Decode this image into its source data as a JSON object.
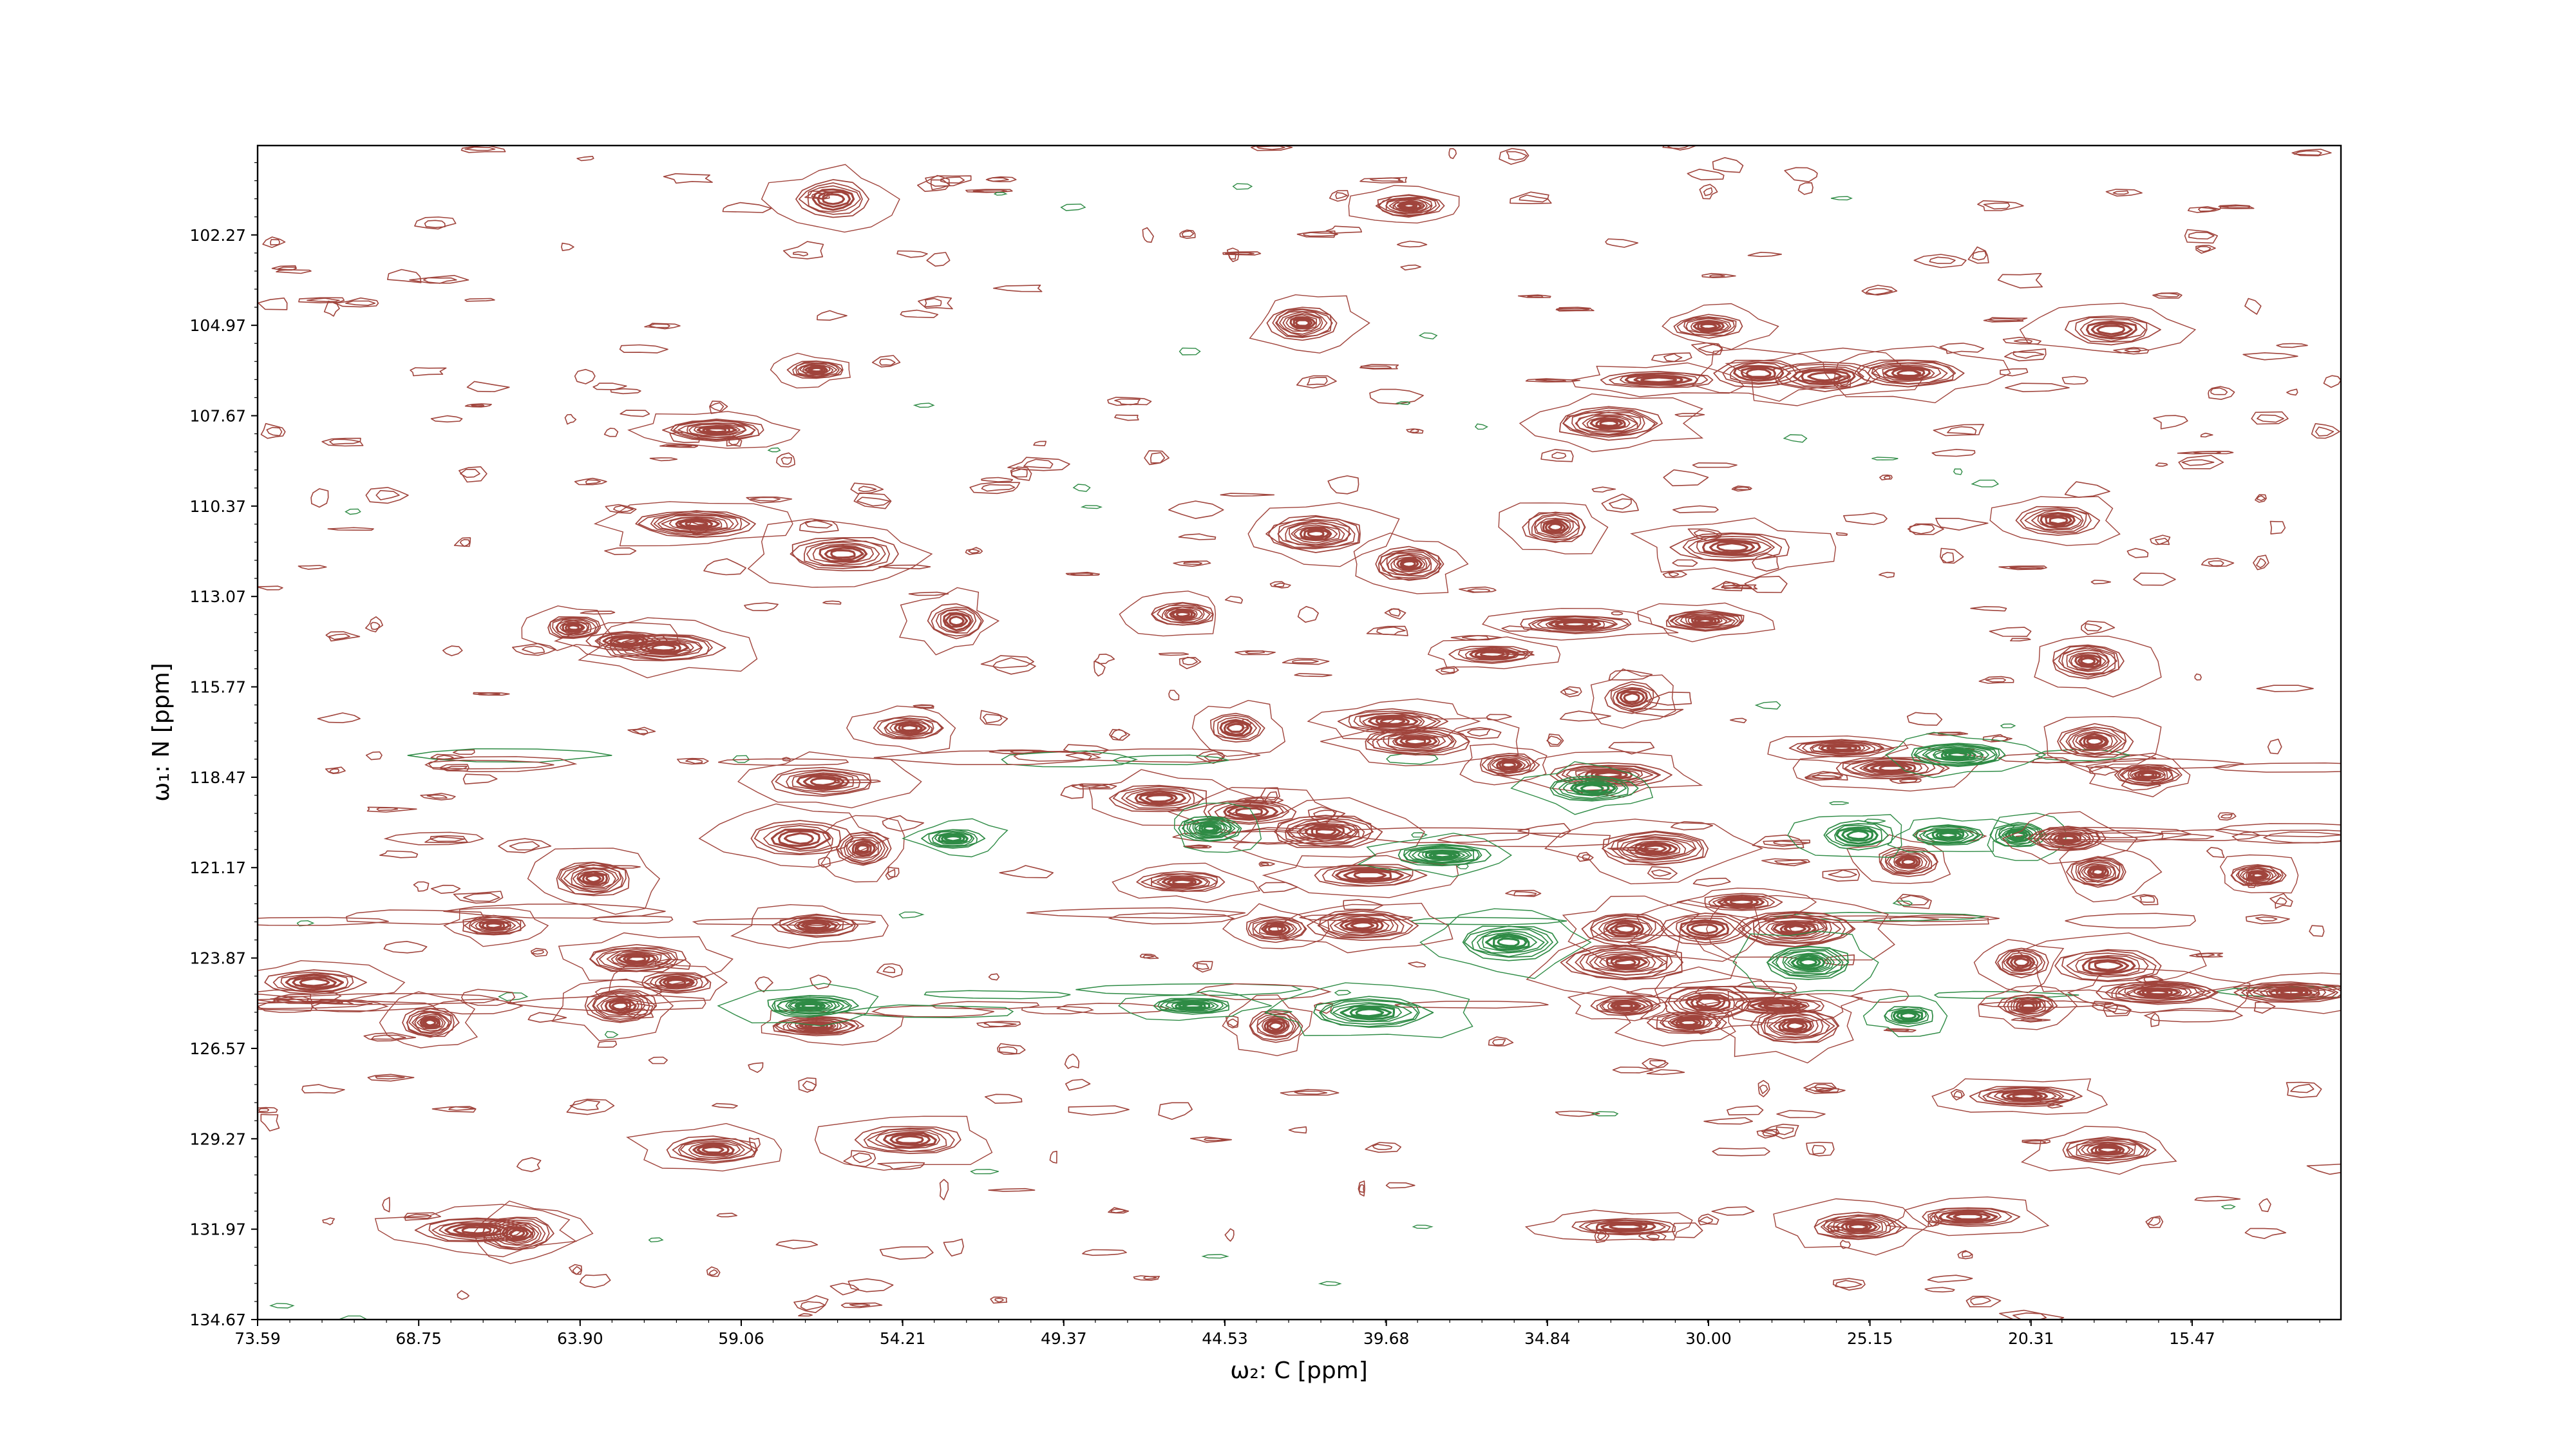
{
  "chart_data": {
    "type": "contour",
    "xlabel": "ω₂: C [ppm]",
    "ylabel": "ω₁: N [ppm]",
    "xlim": [
      73.59,
      11.0
    ],
    "ylim": [
      134.67,
      99.6
    ],
    "x_ticks": [
      "73.59",
      "68.75",
      "63.90",
      "59.06",
      "54.21",
      "49.37",
      "44.53",
      "39.68",
      "34.84",
      "30.00",
      "25.15",
      "20.31",
      "15.47"
    ],
    "y_ticks": [
      "102.27",
      "104.97",
      "107.67",
      "110.37",
      "113.07",
      "115.77",
      "118.47",
      "121.17",
      "123.87",
      "126.57",
      "129.27",
      "131.97",
      "134.67"
    ],
    "colors": {
      "positive": "#a0443c",
      "negative": "#2e8b45"
    },
    "peaks": [
      {
        "x": 57.3,
        "y": 120.3,
        "sign": "pos"
      },
      {
        "x": 55.4,
        "y": 120.6,
        "sign": "pos"
      },
      {
        "x": 56.8,
        "y": 122.9,
        "sign": "pos"
      },
      {
        "x": 56.8,
        "y": 125.9,
        "sign": "pos"
      },
      {
        "x": 57.0,
        "y": 125.3,
        "sign": "neg"
      },
      {
        "x": 52.7,
        "y": 120.3,
        "sign": "neg"
      },
      {
        "x": 56.6,
        "y": 118.6,
        "sign": "pos"
      },
      {
        "x": 56.0,
        "y": 111.8,
        "sign": "pos"
      },
      {
        "x": 60.4,
        "y": 110.9,
        "sign": "pos"
      },
      {
        "x": 62.5,
        "y": 114.4,
        "sign": "pos"
      },
      {
        "x": 64.1,
        "y": 114.0,
        "sign": "pos"
      },
      {
        "x": 61.4,
        "y": 114.6,
        "sign": "pos"
      },
      {
        "x": 62.2,
        "y": 123.9,
        "sign": "pos"
      },
      {
        "x": 62.7,
        "y": 125.3,
        "sign": "pos"
      },
      {
        "x": 61.0,
        "y": 124.6,
        "sign": "pos"
      },
      {
        "x": 63.5,
        "y": 121.5,
        "sign": "pos"
      },
      {
        "x": 66.5,
        "y": 122.9,
        "sign": "pos"
      },
      {
        "x": 68.4,
        "y": 125.8,
        "sign": "pos"
      },
      {
        "x": 71.9,
        "y": 124.6,
        "sign": "pos"
      },
      {
        "x": 54.0,
        "y": 117.0,
        "sign": "pos"
      },
      {
        "x": 56.3,
        "y": 101.2,
        "sign": "pos"
      },
      {
        "x": 56.8,
        "y": 106.3,
        "sign": "pos"
      },
      {
        "x": 59.8,
        "y": 108.1,
        "sign": "pos"
      },
      {
        "x": 54.0,
        "y": 129.3,
        "sign": "pos"
      },
      {
        "x": 59.9,
        "y": 129.6,
        "sign": "pos"
      },
      {
        "x": 67.0,
        "y": 132.0,
        "sign": "pos"
      },
      {
        "x": 65.8,
        "y": 132.1,
        "sign": "pos"
      },
      {
        "x": 52.6,
        "y": 113.8,
        "sign": "pos"
      },
      {
        "x": 45.8,
        "y": 113.6,
        "sign": "pos"
      },
      {
        "x": 46.5,
        "y": 119.1,
        "sign": "pos"
      },
      {
        "x": 43.8,
        "y": 119.5,
        "sign": "pos"
      },
      {
        "x": 45.8,
        "y": 121.6,
        "sign": "pos"
      },
      {
        "x": 44.2,
        "y": 117.0,
        "sign": "pos"
      },
      {
        "x": 43.0,
        "y": 123.0,
        "sign": "pos"
      },
      {
        "x": 40.4,
        "y": 122.9,
        "sign": "pos"
      },
      {
        "x": 41.5,
        "y": 120.1,
        "sign": "pos"
      },
      {
        "x": 40.2,
        "y": 121.4,
        "sign": "pos"
      },
      {
        "x": 43.0,
        "y": 125.9,
        "sign": "pos"
      },
      {
        "x": 40.2,
        "y": 125.5,
        "sign": "neg"
      },
      {
        "x": 38.8,
        "y": 117.4,
        "sign": "pos"
      },
      {
        "x": 39.5,
        "y": 116.8,
        "sign": "pos"
      },
      {
        "x": 39.0,
        "y": 101.4,
        "sign": "pos"
      },
      {
        "x": 42.2,
        "y": 104.9,
        "sign": "pos"
      },
      {
        "x": 41.8,
        "y": 111.2,
        "sign": "pos"
      },
      {
        "x": 39.0,
        "y": 112.1,
        "sign": "pos"
      },
      {
        "x": 36.5,
        "y": 114.8,
        "sign": "pos"
      },
      {
        "x": 34.6,
        "y": 111.0,
        "sign": "pos"
      },
      {
        "x": 34.0,
        "y": 113.9,
        "sign": "pos"
      },
      {
        "x": 36.0,
        "y": 118.1,
        "sign": "pos"
      },
      {
        "x": 33.0,
        "y": 118.4,
        "sign": "pos"
      },
      {
        "x": 31.6,
        "y": 120.6,
        "sign": "pos"
      },
      {
        "x": 32.5,
        "y": 123.0,
        "sign": "pos"
      },
      {
        "x": 30.1,
        "y": 123.0,
        "sign": "pos"
      },
      {
        "x": 27.4,
        "y": 123.0,
        "sign": "pos"
      },
      {
        "x": 29.0,
        "y": 122.2,
        "sign": "pos"
      },
      {
        "x": 32.5,
        "y": 124.0,
        "sign": "pos"
      },
      {
        "x": 32.5,
        "y": 125.3,
        "sign": "pos"
      },
      {
        "x": 30.6,
        "y": 125.8,
        "sign": "pos"
      },
      {
        "x": 30.0,
        "y": 125.2,
        "sign": "pos"
      },
      {
        "x": 27.9,
        "y": 125.3,
        "sign": "pos"
      },
      {
        "x": 27.4,
        "y": 125.9,
        "sign": "pos"
      },
      {
        "x": 30.0,
        "y": 105.0,
        "sign": "pos"
      },
      {
        "x": 28.5,
        "y": 106.4,
        "sign": "pos"
      },
      {
        "x": 31.5,
        "y": 106.6,
        "sign": "pos"
      },
      {
        "x": 33.0,
        "y": 107.9,
        "sign": "pos"
      },
      {
        "x": 30.1,
        "y": 113.8,
        "sign": "pos"
      },
      {
        "x": 29.3,
        "y": 111.6,
        "sign": "pos"
      },
      {
        "x": 32.3,
        "y": 116.1,
        "sign": "pos"
      },
      {
        "x": 26.0,
        "y": 117.6,
        "sign": "pos"
      },
      {
        "x": 24.5,
        "y": 118.2,
        "sign": "pos"
      },
      {
        "x": 24.0,
        "y": 121.0,
        "sign": "pos"
      },
      {
        "x": 25.5,
        "y": 120.2,
        "sign": "neg"
      },
      {
        "x": 22.8,
        "y": 120.2,
        "sign": "neg"
      },
      {
        "x": 20.7,
        "y": 120.2,
        "sign": "neg"
      },
      {
        "x": 19.2,
        "y": 120.3,
        "sign": "pos"
      },
      {
        "x": 18.4,
        "y": 117.4,
        "sign": "pos"
      },
      {
        "x": 16.8,
        "y": 118.4,
        "sign": "pos"
      },
      {
        "x": 18.3,
        "y": 121.3,
        "sign": "pos"
      },
      {
        "x": 20.6,
        "y": 124.0,
        "sign": "pos"
      },
      {
        "x": 18.0,
        "y": 124.1,
        "sign": "pos"
      },
      {
        "x": 20.4,
        "y": 125.3,
        "sign": "pos"
      },
      {
        "x": 16.5,
        "y": 124.9,
        "sign": "pos"
      },
      {
        "x": 12.5,
        "y": 124.9,
        "sign": "pos"
      },
      {
        "x": 17.9,
        "y": 105.1,
        "sign": "pos"
      },
      {
        "x": 19.5,
        "y": 110.8,
        "sign": "pos"
      },
      {
        "x": 18.6,
        "y": 115.0,
        "sign": "pos"
      },
      {
        "x": 20.5,
        "y": 128.0,
        "sign": "pos"
      },
      {
        "x": 18.0,
        "y": 129.6,
        "sign": "pos"
      },
      {
        "x": 13.5,
        "y": 121.4,
        "sign": "pos"
      },
      {
        "x": 22.2,
        "y": 131.6,
        "sign": "pos"
      },
      {
        "x": 32.5,
        "y": 131.9,
        "sign": "pos"
      },
      {
        "x": 25.5,
        "y": 131.9,
        "sign": "pos"
      },
      {
        "x": 26.5,
        "y": 106.5,
        "sign": "pos"
      },
      {
        "x": 24.0,
        "y": 106.4,
        "sign": "pos"
      },
      {
        "x": 36.0,
        "y": 123.4,
        "sign": "neg"
      },
      {
        "x": 38.0,
        "y": 120.8,
        "sign": "neg"
      },
      {
        "x": 33.5,
        "y": 118.8,
        "sign": "neg"
      },
      {
        "x": 22.5,
        "y": 117.8,
        "sign": "neg"
      },
      {
        "x": 27.0,
        "y": 124.0,
        "sign": "neg"
      },
      {
        "x": 24.0,
        "y": 125.6,
        "sign": "neg"
      },
      {
        "x": 45.5,
        "y": 125.3,
        "sign": "neg"
      },
      {
        "x": 45.0,
        "y": 120.0,
        "sign": "neg"
      }
    ]
  }
}
